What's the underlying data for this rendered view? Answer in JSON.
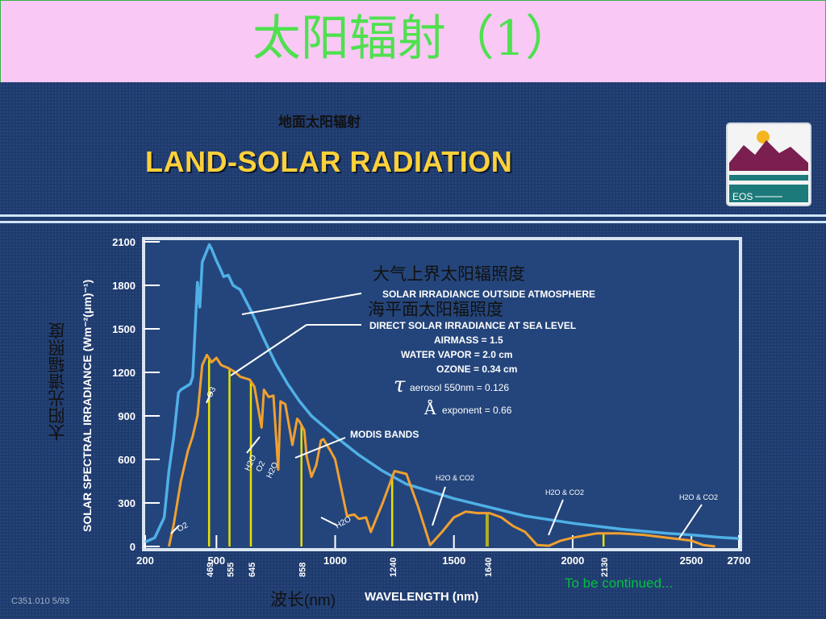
{
  "slide": {
    "title": "太阳辐射（1）",
    "cn_land_title": "地面太阳辐射",
    "en_land_title": "LAND-SOLAR RADIATION",
    "logo_text": "EOS",
    "footer_code": "C351.010 5/93",
    "continued": "To be continued..."
  },
  "annotations": {
    "cn_outside": "大气上界太阳辐照度",
    "cn_sealevel": "海平面太阳辐照度",
    "cn_ylabel": "太阳光谱辐照度",
    "cn_xlabel": "波长",
    "cn_xlabel_unit": "(nm)",
    "outside_label": "SOLAR IRRADIANCE OUTSIDE ATMOSPHERE",
    "sealevel_label": "DIRECT SOLAR IRRADIANCE AT SEA LEVEL",
    "airmass": "AIRMASS  = 1.5",
    "water_vapor": "WATER VAPOR  = 2.0 cm",
    "ozone": "OZONE  = 0.34 cm",
    "tau_symbol": "τ",
    "aerosol": "aerosol 550nm = 0.126",
    "angstrom_symbol": "Å",
    "exponent": "exponent = 0.66",
    "modis_bands_label": "MODIS BANDS",
    "o3": "O3",
    "o2": "O2",
    "h2o": "H2O",
    "h2o_co2": "H2O & CO2"
  },
  "colors": {
    "title_green": "#4fe04f",
    "title_bg": "#f9c8f5",
    "panel_blue": "#1e3b6f",
    "outside_curve": "#4fb0e6",
    "sealevel_curve": "#f0a030",
    "modis_band": "#e8e000",
    "label_yellow": "#ffd13a"
  },
  "chart_data": {
    "type": "line",
    "xlabel": "WAVELENGTH (nm)",
    "ylabel": "SOLAR SPECTRAL IRRADIANCE (Wm⁻²(μm)⁻¹)",
    "xlim": [
      200,
      2700
    ],
    "ylim": [
      0,
      2100
    ],
    "x_ticks": [
      200,
      500,
      1000,
      1500,
      2000,
      2500,
      2700
    ],
    "y_ticks": [
      0,
      300,
      600,
      900,
      1200,
      1500,
      1800,
      2100
    ],
    "series": [
      {
        "name": "SOLAR IRRADIANCE OUTSIDE ATMOSPHERE",
        "color": "#4fb0e6",
        "x": [
          200,
          240,
          260,
          280,
          300,
          320,
          340,
          350,
          370,
          390,
          400,
          420,
          430,
          440,
          450,
          470,
          480,
          500,
          520,
          530,
          550,
          570,
          590,
          600,
          650,
          700,
          750,
          800,
          850,
          900,
          950,
          1000,
          1100,
          1200,
          1300,
          1400,
          1500,
          1600,
          1700,
          1800,
          1900,
          2000,
          2100,
          2200,
          2300,
          2400,
          2500,
          2600,
          2700
        ],
        "y": [
          30,
          60,
          130,
          200,
          520,
          750,
          1060,
          1080,
          1100,
          1120,
          1170,
          1820,
          1650,
          1960,
          2000,
          2080,
          2050,
          1970,
          1900,
          1860,
          1870,
          1800,
          1780,
          1770,
          1610,
          1430,
          1260,
          1120,
          1000,
          900,
          830,
          760,
          630,
          520,
          430,
          380,
          330,
          290,
          250,
          210,
          185,
          160,
          140,
          120,
          105,
          90,
          80,
          65,
          55
        ]
      },
      {
        "name": "DIRECT SOLAR IRRADIANCE AT SEA LEVEL",
        "color": "#f0a030",
        "x": [
          300,
          320,
          350,
          380,
          400,
          420,
          440,
          460,
          480,
          500,
          520,
          550,
          580,
          600,
          640,
          660,
          690,
          700,
          720,
          740,
          760,
          770,
          790,
          820,
          840,
          850,
          870,
          880,
          900,
          920,
          940,
          950,
          980,
          1000,
          1050,
          1080,
          1100,
          1130,
          1150,
          1200,
          1250,
          1300,
          1350,
          1400,
          1450,
          1500,
          1550,
          1600,
          1650,
          1700,
          1750,
          1800,
          1850,
          1900,
          1950,
          2000,
          2100,
          2200,
          2300,
          2400,
          2500,
          2550,
          2600
        ],
        "y": [
          0,
          150,
          450,
          660,
          760,
          900,
          1250,
          1320,
          1270,
          1300,
          1250,
          1230,
          1200,
          1170,
          1150,
          1100,
          820,
          1080,
          1030,
          1040,
          530,
          1000,
          980,
          700,
          880,
          860,
          800,
          620,
          480,
          560,
          730,
          740,
          660,
          600,
          210,
          220,
          190,
          200,
          100,
          300,
          520,
          500,
          270,
          10,
          100,
          200,
          240,
          230,
          230,
          200,
          140,
          100,
          10,
          5,
          40,
          60,
          90,
          90,
          80,
          60,
          40,
          10,
          0
        ]
      }
    ],
    "modis_bands": [
      469,
      555,
      645,
      858,
      1240,
      1640,
      2130
    ],
    "modis_band_labels": [
      "469",
      "555",
      "645",
      "858",
      "1240",
      "1640",
      "2130"
    ]
  }
}
